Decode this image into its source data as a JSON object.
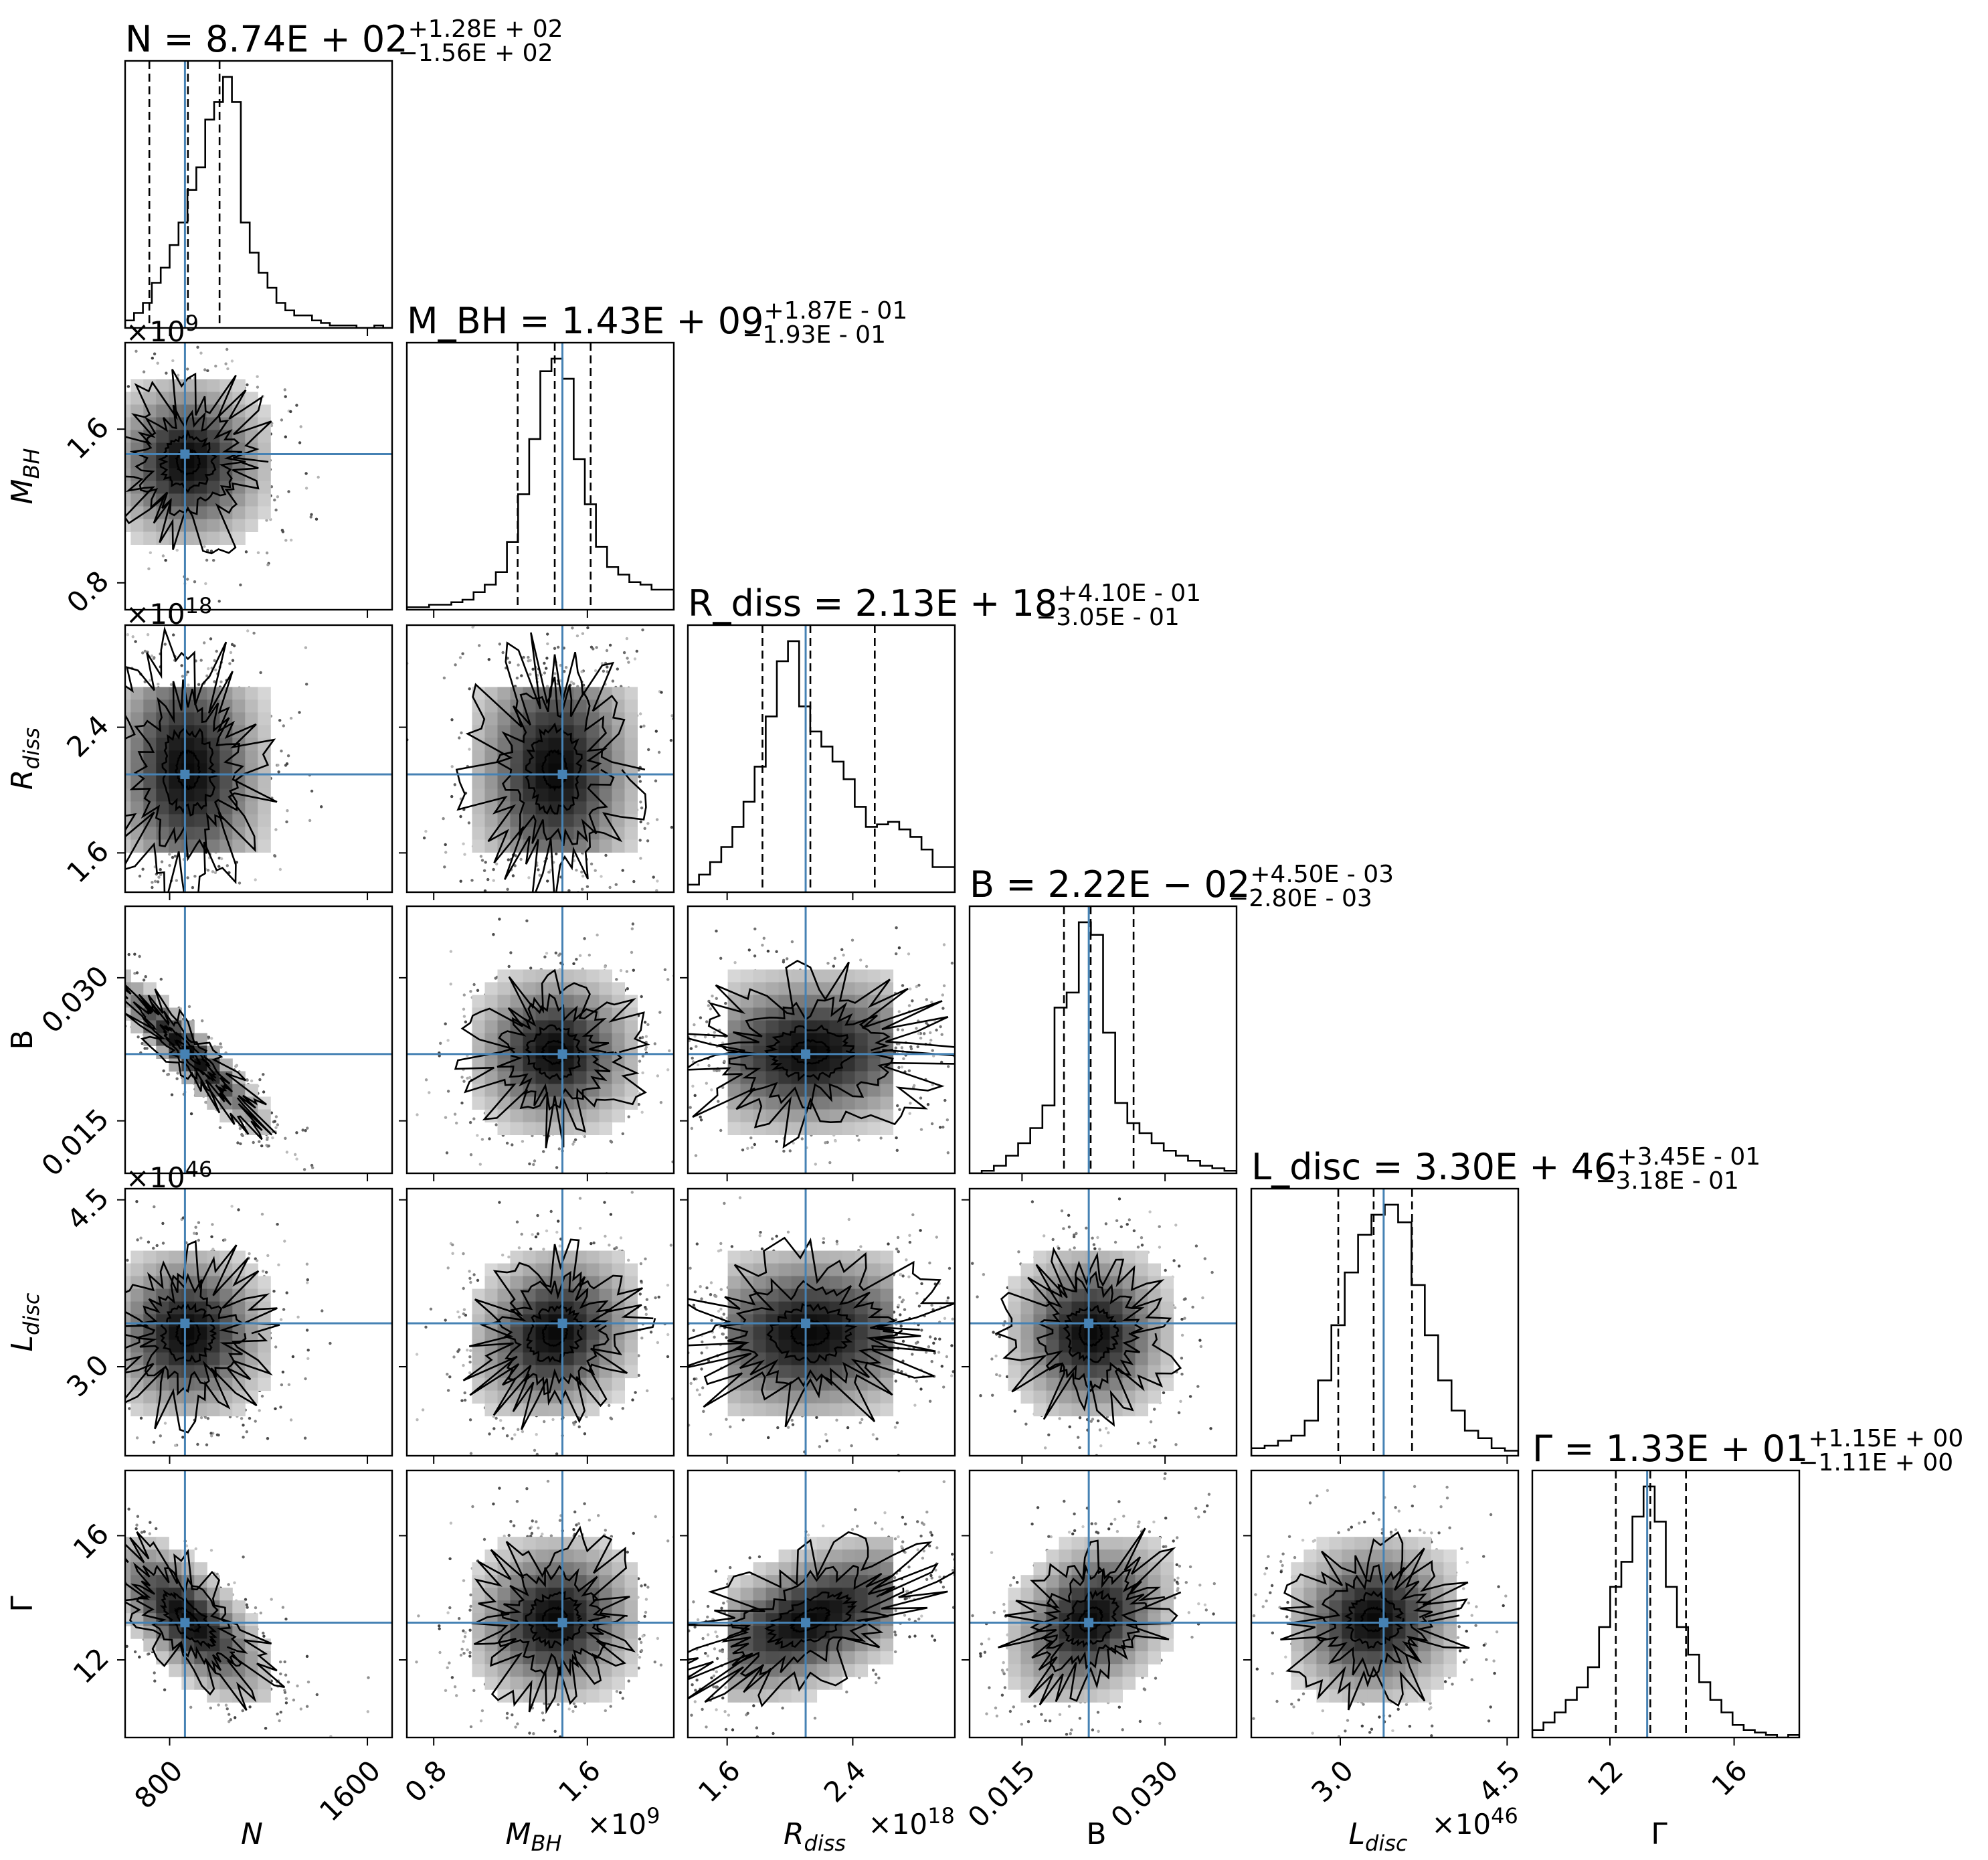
{
  "chart_data": {
    "type": "corner",
    "parameters": [
      {
        "key": "N",
        "label": "N",
        "title": "N = 8.74E + 02",
        "best": 874,
        "minus": 156,
        "plus": 128,
        "range": [
          620,
          1700
        ],
        "ticks": [
          800,
          1600
        ],
        "tick_labels": [
          "800",
          "1600"
        ],
        "multiplier": "",
        "quantiles": [
          718,
          874,
          1002
        ],
        "truth": 862
      },
      {
        "key": "MBH",
        "label": "M_BH",
        "title": "M_BH = 1.43E + 09",
        "best": 1.43,
        "minus": 0.193,
        "plus": 0.187,
        "range": [
          0.66,
          2.05
        ],
        "ticks": [
          0.8,
          1.6
        ],
        "tick_labels": [
          "0.8",
          "1.6"
        ],
        "multiplier": "×10^9",
        "quantiles": [
          1.237,
          1.43,
          1.617
        ],
        "truth": 1.47
      },
      {
        "key": "Rdiss",
        "label": "R_diss",
        "title": "R_diss = 2.13E + 18",
        "best": 2.13,
        "minus": 0.305,
        "plus": 0.41,
        "range": [
          1.35,
          3.05
        ],
        "ticks": [
          1.6,
          2.4
        ],
        "tick_labels": [
          "1.6",
          "2.4"
        ],
        "multiplier": "×10^18",
        "quantiles": [
          1.825,
          2.13,
          2.54
        ],
        "truth": 2.1
      },
      {
        "key": "B",
        "label": "B",
        "title": "B = 2.22E − 02",
        "best": 0.0222,
        "minus": 0.0028,
        "plus": 0.0045,
        "range": [
          0.0095,
          0.0375
        ],
        "ticks": [
          0.015,
          0.03
        ],
        "tick_labels": [
          "0.015",
          "0.030"
        ],
        "multiplier": "",
        "quantiles": [
          0.0194,
          0.0222,
          0.0267
        ],
        "truth": 0.022
      },
      {
        "key": "Ldisc",
        "label": "L_disc",
        "title": "L_disc = 3.30E + 46",
        "best": 3.3,
        "minus": 0.318,
        "plus": 0.345,
        "range": [
          2.2,
          4.6
        ],
        "ticks": [
          3.0,
          4.5
        ],
        "tick_labels": [
          "3.0",
          "4.5"
        ],
        "multiplier": "×10^46",
        "quantiles": [
          2.982,
          3.3,
          3.645
        ],
        "truth": 3.39
      },
      {
        "key": "Gamma",
        "label": "Γ",
        "title": "Γ = 1.33E + 01",
        "best": 13.3,
        "minus": 1.11,
        "plus": 1.15,
        "range": [
          9.5,
          18.1
        ],
        "ticks": [
          12,
          16
        ],
        "tick_labels": [
          "12",
          "16"
        ],
        "multiplier": "",
        "quantiles": [
          12.19,
          13.3,
          14.45
        ],
        "truth": 13.2
      }
    ],
    "histograms": {
      "N": [
        0.03,
        0.06,
        0.1,
        0.18,
        0.24,
        0.33,
        0.42,
        0.55,
        0.64,
        0.83,
        0.9,
        1.0,
        0.9,
        0.42,
        0.3,
        0.22,
        0.16,
        0.1,
        0.07,
        0.05,
        0.05,
        0.03,
        0.02,
        0.01,
        0.01,
        0.01,
        0.0,
        0.0,
        0.01,
        0.0
      ],
      "MBH": [
        0.01,
        0.01,
        0.02,
        0.02,
        0.03,
        0.04,
        0.07,
        0.1,
        0.15,
        0.27,
        0.46,
        0.68,
        0.95,
        1.0,
        0.92,
        0.6,
        0.42,
        0.25,
        0.17,
        0.14,
        0.11,
        0.1,
        0.08,
        0.08
      ],
      "Rdiss": [
        0.03,
        0.07,
        0.12,
        0.18,
        0.26,
        0.36,
        0.5,
        0.7,
        0.92,
        1.0,
        0.74,
        0.64,
        0.58,
        0.52,
        0.45,
        0.34,
        0.26,
        0.27,
        0.28,
        0.25,
        0.22,
        0.17,
        0.1,
        0.1
      ],
      "B": [
        0.0,
        0.01,
        0.03,
        0.07,
        0.12,
        0.18,
        0.27,
        0.66,
        0.72,
        1.0,
        0.95,
        0.56,
        0.28,
        0.2,
        0.16,
        0.12,
        0.09,
        0.07,
        0.05,
        0.03,
        0.02,
        0.01
      ],
      "Ldisc": [
        0.03,
        0.04,
        0.06,
        0.08,
        0.14,
        0.3,
        0.52,
        0.73,
        0.88,
        0.96,
        1.0,
        0.93,
        0.68,
        0.48,
        0.3,
        0.18,
        0.1,
        0.07,
        0.03,
        0.02
      ],
      "Gamma": [
        0.03,
        0.06,
        0.1,
        0.15,
        0.2,
        0.28,
        0.44,
        0.6,
        0.7,
        0.88,
        1.0,
        0.86,
        0.6,
        0.44,
        0.33,
        0.22,
        0.15,
        0.1,
        0.05,
        0.03,
        0.02,
        0.01,
        0.0,
        0.01
      ]
    },
    "correlations": [
      [
        0,
        1,
        0.0
      ],
      [
        0,
        2,
        -0.05
      ],
      [
        1,
        2,
        0.0
      ],
      [
        0,
        3,
        -0.93
      ],
      [
        1,
        3,
        0.0
      ],
      [
        2,
        3,
        0.05
      ],
      [
        0,
        4,
        0.0
      ],
      [
        1,
        4,
        0.15
      ],
      [
        2,
        4,
        0.05
      ],
      [
        3,
        4,
        0.0
      ],
      [
        0,
        5,
        -0.7
      ],
      [
        1,
        5,
        0.05
      ],
      [
        2,
        5,
        0.55
      ],
      [
        3,
        5,
        0.3
      ],
      [
        4,
        5,
        0.05
      ]
    ],
    "contour_levels": [
      0.25,
      0.55,
      1.0,
      1.5
    ],
    "colors": {
      "hist": "#000000",
      "truth": "#4682b4",
      "quantile": "#000000",
      "density_dark": "#000000",
      "density_light": "#f2f2f2"
    }
  }
}
